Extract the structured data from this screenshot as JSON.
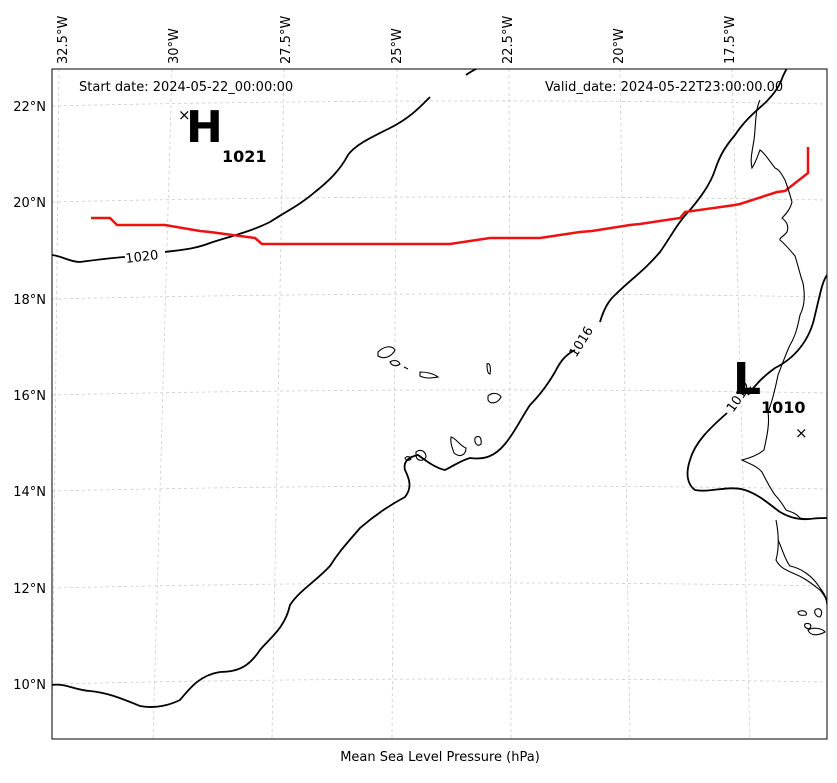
{
  "map": {
    "start_date": "Start date: 2024-05-22_00:00:00",
    "valid_date": "Valid_date: 2024-05-22T23:00:00.00",
    "xlabel": "Mean Sea Level Pressure (hPa)",
    "lon_labels": [
      "32.5°W",
      "30°W",
      "27.5°W",
      "25°W",
      "22.5°W",
      "20°W",
      "17.5°W"
    ],
    "lat_labels": [
      "22°N",
      "20°N",
      "18°N",
      "16°N",
      "14°N",
      "12°N",
      "10°N"
    ],
    "high": {
      "symbol": "H",
      "value": "1021"
    },
    "low": {
      "symbol": "L",
      "value": "1010"
    },
    "contour_labels": [
      "1020",
      "1016",
      "1012"
    ],
    "colors": {
      "track": "#ee1111",
      "isobar": "#000000",
      "grid": "#cccccc",
      "coast": "#000000"
    }
  }
}
